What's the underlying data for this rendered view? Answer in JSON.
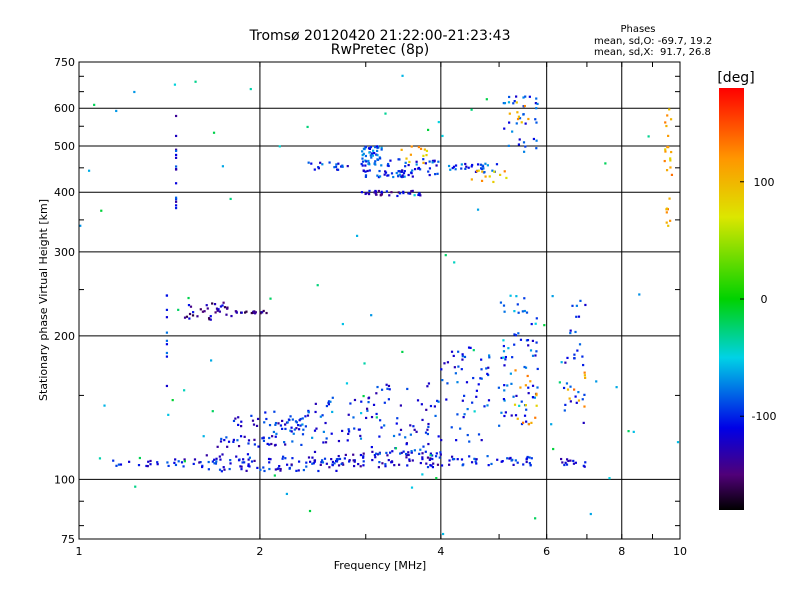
{
  "chart_data": {
    "type": "scatter",
    "title": "Tromsø 20120420 21:22:00-21:23:43",
    "subtitle": "RwPretec (8p)",
    "xlabel": "Frequency [MHz]",
    "ylabel": "Stationary phase Virtual Height [km]",
    "x_scale": "log",
    "y_scale": "log",
    "xlim": [
      1,
      10
    ],
    "ylim": [
      75,
      750
    ],
    "x_ticks": [
      1,
      2,
      4,
      6,
      8,
      10
    ],
    "x_tick_labels": [
      "1",
      "2",
      "4",
      "6",
      "8",
      "10"
    ],
    "y_ticks": [
      75,
      100,
      200,
      300,
      400,
      500,
      600,
      750
    ],
    "y_tick_labels": [
      "75",
      "100",
      "200",
      "300",
      "400",
      "500",
      "600",
      "750"
    ],
    "grid": true,
    "stats": {
      "heading": "Phases",
      "line1": "mean, sd,O: -69.7, 19.2",
      "line2": "mean, sd,X:  91.7, 26.8"
    },
    "colorbar": {
      "label": "[deg]",
      "range": [
        -180,
        180
      ],
      "ticks": [
        100,
        0,
        -100
      ],
      "tick_labels": [
        "100",
        "0",
        "-100"
      ]
    },
    "clusters": [
      {
        "x0": 1.1,
        "x1": 1.35,
        "y0": 106,
        "y1": 110,
        "n": 12,
        "phase": -110
      },
      {
        "x0": 1.35,
        "x1": 1.6,
        "y0": 106,
        "y1": 112,
        "n": 14,
        "phase": -105
      },
      {
        "x0": 1.6,
        "x1": 2.0,
        "y0": 104,
        "y1": 113,
        "n": 40,
        "phase": -110
      },
      {
        "x0": 2.0,
        "x1": 2.7,
        "y0": 104,
        "y1": 112,
        "n": 55,
        "phase": -110
      },
      {
        "x0": 2.7,
        "x1": 3.3,
        "y0": 106,
        "y1": 114,
        "n": 35,
        "phase": -115
      },
      {
        "x0": 3.3,
        "x1": 4.0,
        "y0": 106,
        "y1": 115,
        "n": 40,
        "phase": -115
      },
      {
        "x0": 4.0,
        "x1": 5.8,
        "y0": 107,
        "y1": 112,
        "n": 40,
        "phase": -110
      },
      {
        "x0": 6.3,
        "x1": 7.0,
        "y0": 106,
        "y1": 111,
        "n": 14,
        "phase": -105
      },
      {
        "x0": 1.7,
        "x1": 2.3,
        "y0": 117,
        "y1": 124,
        "n": 30,
        "phase": -110
      },
      {
        "x0": 1.8,
        "x1": 2.4,
        "y0": 128,
        "y1": 136,
        "n": 25,
        "phase": -110
      },
      {
        "x0": 2.0,
        "x1": 2.6,
        "y0": 118,
        "y1": 140,
        "n": 30,
        "phase": -95
      },
      {
        "x0": 2.2,
        "x1": 3.0,
        "y0": 112,
        "y1": 150,
        "n": 40,
        "phase": -100
      },
      {
        "x0": 3.0,
        "x1": 4.0,
        "y0": 112,
        "y1": 160,
        "n": 70,
        "phase": -105
      },
      {
        "x0": 4.0,
        "x1": 5.0,
        "y0": 120,
        "y1": 190,
        "n": 55,
        "phase": -100
      },
      {
        "x0": 5.0,
        "x1": 5.8,
        "y0": 130,
        "y1": 200,
        "n": 45,
        "phase": -95
      },
      {
        "x0": 5.0,
        "x1": 5.8,
        "y0": 180,
        "y1": 245,
        "n": 25,
        "phase": -75
      },
      {
        "x0": 5.3,
        "x1": 5.8,
        "y0": 130,
        "y1": 170,
        "n": 15,
        "phase": 110
      },
      {
        "x0": 6.4,
        "x1": 7.0,
        "y0": 130,
        "y1": 240,
        "n": 30,
        "phase": -100
      },
      {
        "x0": 6.5,
        "x1": 7.0,
        "y0": 140,
        "y1": 170,
        "n": 8,
        "phase": 110
      },
      {
        "x0": 1.5,
        "x1": 1.8,
        "y0": 216,
        "y1": 235,
        "n": 35,
        "phase": -135
      },
      {
        "x0": 1.8,
        "x1": 2.08,
        "y0": 223,
        "y1": 226,
        "n": 18,
        "phase": -140
      },
      {
        "x0": 2.4,
        "x1": 2.8,
        "y0": 445,
        "y1": 462,
        "n": 18,
        "phase": -100
      },
      {
        "x0": 2.95,
        "x1": 3.2,
        "y0": 455,
        "y1": 500,
        "n": 50,
        "phase": -90
      },
      {
        "x0": 2.95,
        "x1": 3.6,
        "y0": 430,
        "y1": 445,
        "n": 35,
        "phase": -100
      },
      {
        "x0": 2.95,
        "x1": 3.7,
        "y0": 393,
        "y1": 403,
        "n": 35,
        "phase": -130
      },
      {
        "x0": 3.2,
        "x1": 4.0,
        "y0": 430,
        "y1": 470,
        "n": 35,
        "phase": -95
      },
      {
        "x0": 3.4,
        "x1": 3.8,
        "y0": 455,
        "y1": 500,
        "n": 12,
        "phase": 100
      },
      {
        "x0": 4.1,
        "x1": 5.0,
        "y0": 440,
        "y1": 460,
        "n": 30,
        "phase": -95
      },
      {
        "x0": 4.5,
        "x1": 5.2,
        "y0": 420,
        "y1": 445,
        "n": 12,
        "phase": 100
      },
      {
        "x0": 5.0,
        "x1": 5.8,
        "y0": 480,
        "y1": 640,
        "n": 35,
        "phase": -90
      },
      {
        "x0": 5.2,
        "x1": 5.6,
        "y0": 560,
        "y1": 620,
        "n": 8,
        "phase": 120
      },
      {
        "x0": 1.45,
        "x1": 1.45,
        "y0": 370,
        "y1": 600,
        "n": 15,
        "phase": -110
      },
      {
        "x0": 9.4,
        "x1": 9.7,
        "y0": 330,
        "y1": 600,
        "n": 25,
        "phase": 110
      },
      {
        "x0": 1.4,
        "x1": 1.4,
        "y0": 150,
        "y1": 250,
        "n": 10,
        "phase": -105
      },
      {
        "x0": 1.0,
        "x1": 10.0,
        "y0": 76,
        "y1": 740,
        "n": 80,
        "phase": -40
      }
    ]
  }
}
